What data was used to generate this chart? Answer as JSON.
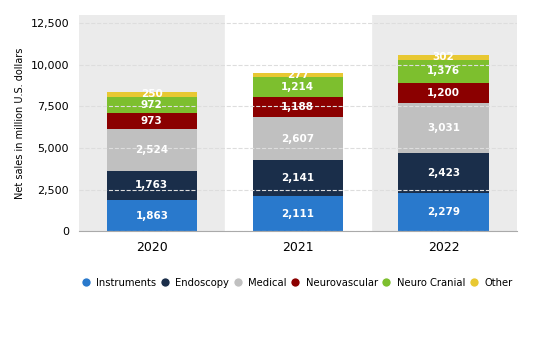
{
  "years": [
    "2020",
    "2021",
    "2022"
  ],
  "segments": [
    {
      "name": "Instruments",
      "values": [
        1863,
        2111,
        2279
      ],
      "color": "#2979CC"
    },
    {
      "name": "Endoscopy",
      "values": [
        1763,
        2141,
        2423
      ],
      "color": "#1A2E4A"
    },
    {
      "name": "Medical",
      "values": [
        2524,
        2607,
        3031
      ],
      "color": "#C0C0C0"
    },
    {
      "name": "Neurovascular",
      "values": [
        973,
        1188,
        1200
      ],
      "color": "#8B0000"
    },
    {
      "name": "Neuro Cranial",
      "values": [
        972,
        1214,
        1376
      ],
      "color": "#7DBF2E"
    },
    {
      "name": "Other",
      "values": [
        250,
        277,
        302
      ],
      "color": "#E8C832"
    }
  ],
  "ylabel": "Net sales in million U.S. dollars",
  "ylim": [
    0,
    13000
  ],
  "yticks": [
    0,
    2500,
    5000,
    7500,
    10000,
    12500
  ],
  "ytick_labels": [
    "0",
    "2,500",
    "5,000",
    "7,500",
    "10,000",
    "12,500"
  ],
  "bar_width": 0.62,
  "background_color": "#FFFFFF",
  "plot_bg_color": "#EBEBEB",
  "highlight_bg_color": "#FFFFFF",
  "grid_color": "#DDDDDD",
  "label_color": "#FFFFFF",
  "label_fontsize": 7.5,
  "highlight_col": 1
}
